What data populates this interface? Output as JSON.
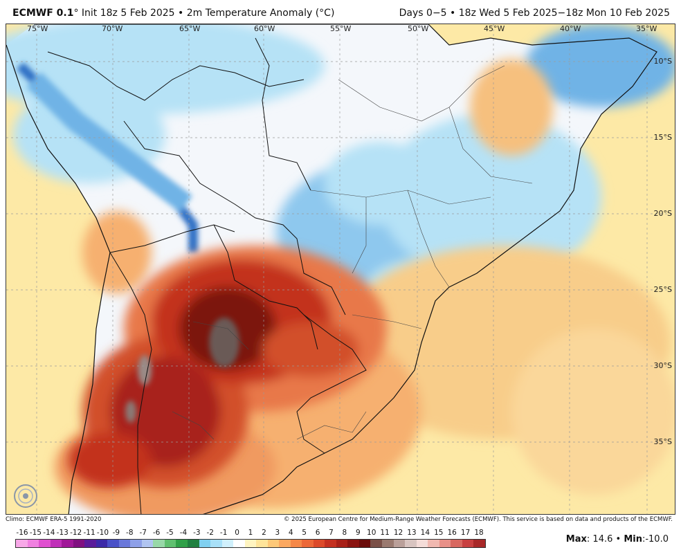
{
  "header": {
    "model": "ECMWF 0.1",
    "degree": "°",
    "subtitle": " Init 18z 5 Feb 2025 • 2m Temperature Anomaly (°C)",
    "valid": "Days 0−5 • 18z Wed 5 Feb 2025−18z Mon 10 Feb 2025"
  },
  "map": {
    "lon_labels": [
      "75°W",
      "70°W",
      "65°W",
      "60°W",
      "55°W",
      "50°W",
      "45°W",
      "40°W",
      "35°W"
    ],
    "lat_labels": [
      "10°S",
      "15°S",
      "20°S",
      "25°S",
      "30°S",
      "35°S"
    ],
    "colors": {
      "ocean_warm": "#fde9a6",
      "land_neutral": "#f4f7fb",
      "cool_light": "#b6e2f6",
      "cool": "#6fb3e6",
      "cool_deep": "#2f6fc5",
      "warm_light": "#f6c07e",
      "warm": "#e8784a",
      "hot": "#c3321e",
      "very_hot": "#7c1510",
      "extreme": "#6a5a56"
    }
  },
  "footer": {
    "climo": "Climo: ECMWF ERA-5 1991-2020",
    "copyright": "© 2025 European Centre for Medium-Range Weather Forecasts (ECMWF). This service is based on data and products of the ECMWF."
  },
  "colorbar": {
    "labels": [
      "-16",
      "-15",
      "-14",
      "-13",
      "-12",
      "-11",
      "-10",
      "-9",
      "-8",
      "-7",
      "-6",
      "-5",
      "-4",
      "-3",
      "-2",
      "-1",
      "0",
      "1",
      "2",
      "3",
      "4",
      "5",
      "6",
      "7",
      "8",
      "9",
      "10",
      "11",
      "12",
      "13",
      "14",
      "15",
      "16",
      "17",
      "18"
    ],
    "colors": [
      "#f8a8e8",
      "#f080e0",
      "#e050d0",
      "#c030b8",
      "#a01898",
      "#801080",
      "#5a1c9a",
      "#3c2aa8",
      "#4a52c8",
      "#6a78da",
      "#8ea0e8",
      "#b0c4f0",
      "#98d8a8",
      "#60c070",
      "#30a048",
      "#208040",
      "#80d0f0",
      "#a8e0f8",
      "#d0f0fc",
      "#ffffff",
      "#fff4c0",
      "#fee49a",
      "#fdc878",
      "#fba860",
      "#f58848",
      "#ec6838",
      "#dc4a2a",
      "#c43020",
      "#a82018",
      "#8a1410",
      "#6a0c0a",
      "#7a5048",
      "#9a7a70",
      "#baa09a",
      "#d8c4c0",
      "#f4dcd8",
      "#f0b8b0",
      "#e89088",
      "#d86860",
      "#c84040",
      "#a82828"
    ]
  },
  "stats": {
    "max_label": "Max",
    "max_value": ": 14.6",
    "sep": " • ",
    "min_label": "Min",
    "min_value": ":-10.0"
  }
}
